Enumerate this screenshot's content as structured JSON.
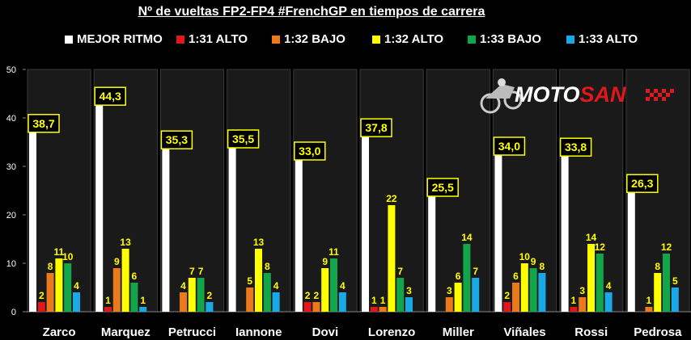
{
  "title": "Nº de vueltas FP2-FP4 #FrenchGP en tiempos de carrera",
  "logo": {
    "part1": "MOTO",
    "part2": "SAN"
  },
  "colors": {
    "background": "#000000",
    "MEJOR RITMO": "#ffffff",
    "1:31 ALTO": "#e0181c",
    "1:32 BAJO": "#ea7a1b",
    "1:32 ALTO": "#ffff00",
    "1:33 BAJO": "#13a54a",
    "1:33 ALTO": "#19a9e6",
    "value_label": "#ffff00",
    "panel": "#1a1a1a"
  },
  "chart_data": {
    "type": "bar",
    "title": "Nº de vueltas FP2-FP4 #FrenchGP en tiempos de carrera",
    "categories": [
      "Zarco",
      "Marquez",
      "Petrucci",
      "Iannone",
      "Dovi",
      "Lorenzo",
      "Miller",
      "Viñales",
      "Rossi",
      "Pedrosa"
    ],
    "series": [
      {
        "name": "MEJOR RITMO",
        "values": [
          38.7,
          44.3,
          35.3,
          35.5,
          33.0,
          37.8,
          25.5,
          34.0,
          33.8,
          26.3
        ],
        "labels": [
          "38,7",
          "44,3",
          "35,3",
          "35,5",
          "33,0",
          "37,8",
          "25,5",
          "34,0",
          "33,8",
          "26,3"
        ]
      },
      {
        "name": "1:31 ALTO",
        "values": [
          2,
          1,
          0,
          0,
          2,
          1,
          0,
          2,
          1,
          0
        ]
      },
      {
        "name": "1:32 BAJO",
        "values": [
          8,
          9,
          4,
          5,
          2,
          1,
          3,
          6,
          3,
          1
        ]
      },
      {
        "name": "1:32 ALTO",
        "values": [
          11,
          13,
          7,
          13,
          9,
          22,
          6,
          10,
          14,
          8
        ]
      },
      {
        "name": "1:33 BAJO",
        "values": [
          10,
          6,
          7,
          8,
          11,
          7,
          14,
          9,
          12,
          12
        ]
      },
      {
        "name": "1:33 ALTO",
        "values": [
          4,
          1,
          2,
          4,
          4,
          3,
          7,
          8,
          4,
          5
        ]
      }
    ],
    "ylim": [
      0,
      50
    ],
    "yticks": [
      0,
      10,
      20,
      30,
      40,
      50
    ],
    "grid": false,
    "legend_position": "top"
  }
}
